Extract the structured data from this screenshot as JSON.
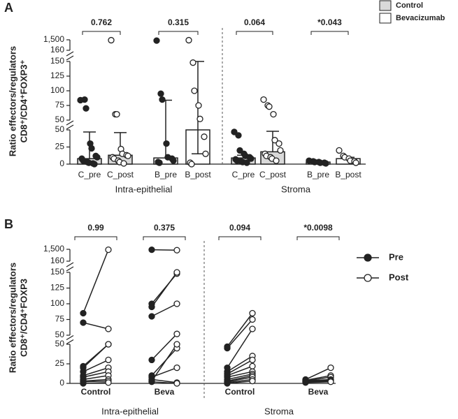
{
  "chart_data": [
    {
      "type": "bar_scatter",
      "panel_label": "A",
      "y_label": [
        "Ratio effectors/regulators",
        "CD8⁺/CD4⁺FOXP3⁺"
      ],
      "y_segments": [
        {
          "ylim": [
            0,
            50
          ],
          "yticks": [
            0,
            25,
            50
          ]
        },
        {
          "ylim": [
            50,
            150
          ],
          "yticks": [
            50,
            75,
            100,
            125,
            150
          ]
        },
        {
          "ylim": [
            160,
            1500
          ],
          "yticks": [
            160,
            {
              "value": 1500,
              "label": "1,500"
            }
          ]
        }
      ],
      "categories": [
        "C_pre",
        "C_post",
        "B_pre",
        "B_post",
        "C_pre",
        "C_post",
        "B_pre",
        "B_post"
      ],
      "groups": [
        "Intra-epithelial",
        "Stroma"
      ],
      "comparisons": [
        "0.762",
        "0.315",
        "0.064",
        "*0.043"
      ],
      "series": [
        {
          "name": "Control",
          "color": "#d9d9d9"
        },
        {
          "name": "Bevacizumab",
          "color": "#ffffff"
        }
      ],
      "bar_colors": [
        "#d9d9d9",
        "#d9d9d9",
        "#ffffff",
        "#ffffff",
        "#d9d9d9",
        "#d9d9d9",
        "#ffffff",
        "#ffffff"
      ],
      "values": [
        8,
        13,
        9,
        50,
        9,
        18,
        3,
        8
      ],
      "error_low": [
        null,
        null,
        null,
        15,
        null,
        null,
        null,
        null
      ],
      "error_high": [
        47,
        46,
        84,
        150,
        13,
        48,
        4,
        10
      ],
      "points_filled": [
        true,
        false,
        true,
        false,
        true,
        false,
        true,
        false
      ],
      "points": [
        [
          84,
          85,
          70,
          30,
          23,
          12,
          10,
          8,
          5,
          3,
          2,
          1,
          0
        ],
        [
          1450,
          60,
          60,
          22,
          15,
          13,
          12,
          10,
          8,
          5,
          3,
          1
        ],
        [
          1400,
          95,
          85,
          30,
          10,
          8,
          5,
          3,
          2
        ],
        [
          1450,
          148,
          100,
          75,
          52,
          40,
          15,
          2,
          0
        ],
        [
          47,
          42,
          20,
          15,
          12,
          10,
          8,
          7,
          5,
          4,
          3,
          2
        ],
        [
          85,
          75,
          73,
          60,
          35,
          30,
          20,
          15,
          12,
          10,
          8,
          5
        ],
        [
          5,
          4,
          3,
          3,
          2,
          2,
          1
        ],
        [
          20,
          12,
          10,
          8,
          5,
          4,
          2
        ]
      ]
    },
    {
      "type": "paired",
      "panel_label": "B",
      "y_label": [
        "Ratio effectors/regulators",
        "CD8⁺/CD4⁺FOXP3"
      ],
      "y_segments": [
        {
          "ylim": [
            0,
            50
          ],
          "yticks": [
            0,
            25,
            50
          ]
        },
        {
          "ylim": [
            50,
            150
          ],
          "yticks": [
            50,
            75,
            100,
            125,
            150
          ]
        },
        {
          "ylim": [
            160,
            1500
          ],
          "yticks": [
            160,
            {
              "value": 1500,
              "label": "1,500"
            }
          ]
        }
      ],
      "categories": [
        "Control",
        "Beva",
        "Control",
        "Beva"
      ],
      "groups": [
        "Intra-epithelial",
        "Stroma"
      ],
      "comparisons": [
        "0.99",
        "0.375",
        "0.094",
        "*0.0098"
      ],
      "series": [
        {
          "name": "Pre",
          "filled": true,
          "values": [
            [
              85,
              70,
              22,
              20,
              15,
              10,
              8,
              5,
              3,
              2,
              0
            ],
            [
              1450,
              100,
              95,
              80,
              30,
              10,
              8,
              5,
              3,
              2
            ],
            [
              47,
              45,
              20,
              15,
              12,
              10,
              8,
              5,
              3,
              2,
              1,
              0
            ],
            [
              5,
              4,
              3,
              3,
              2,
              2,
              1
            ]
          ]
        },
        {
          "name": "Post",
          "filled": false,
          "values": [
            [
              1450,
              60,
              50,
              50,
              30,
              20,
              15,
              10,
              5,
              3,
              1
            ],
            [
              1400,
              148,
              150,
              100,
              52,
              45,
              20,
              1,
              50,
              0
            ],
            [
              85,
              75,
              60,
              35,
              30,
              22,
              15,
              12,
              10,
              8,
              5,
              3
            ],
            [
              20,
              10,
              8,
              5,
              4,
              3,
              2
            ]
          ]
        }
      ]
    }
  ]
}
